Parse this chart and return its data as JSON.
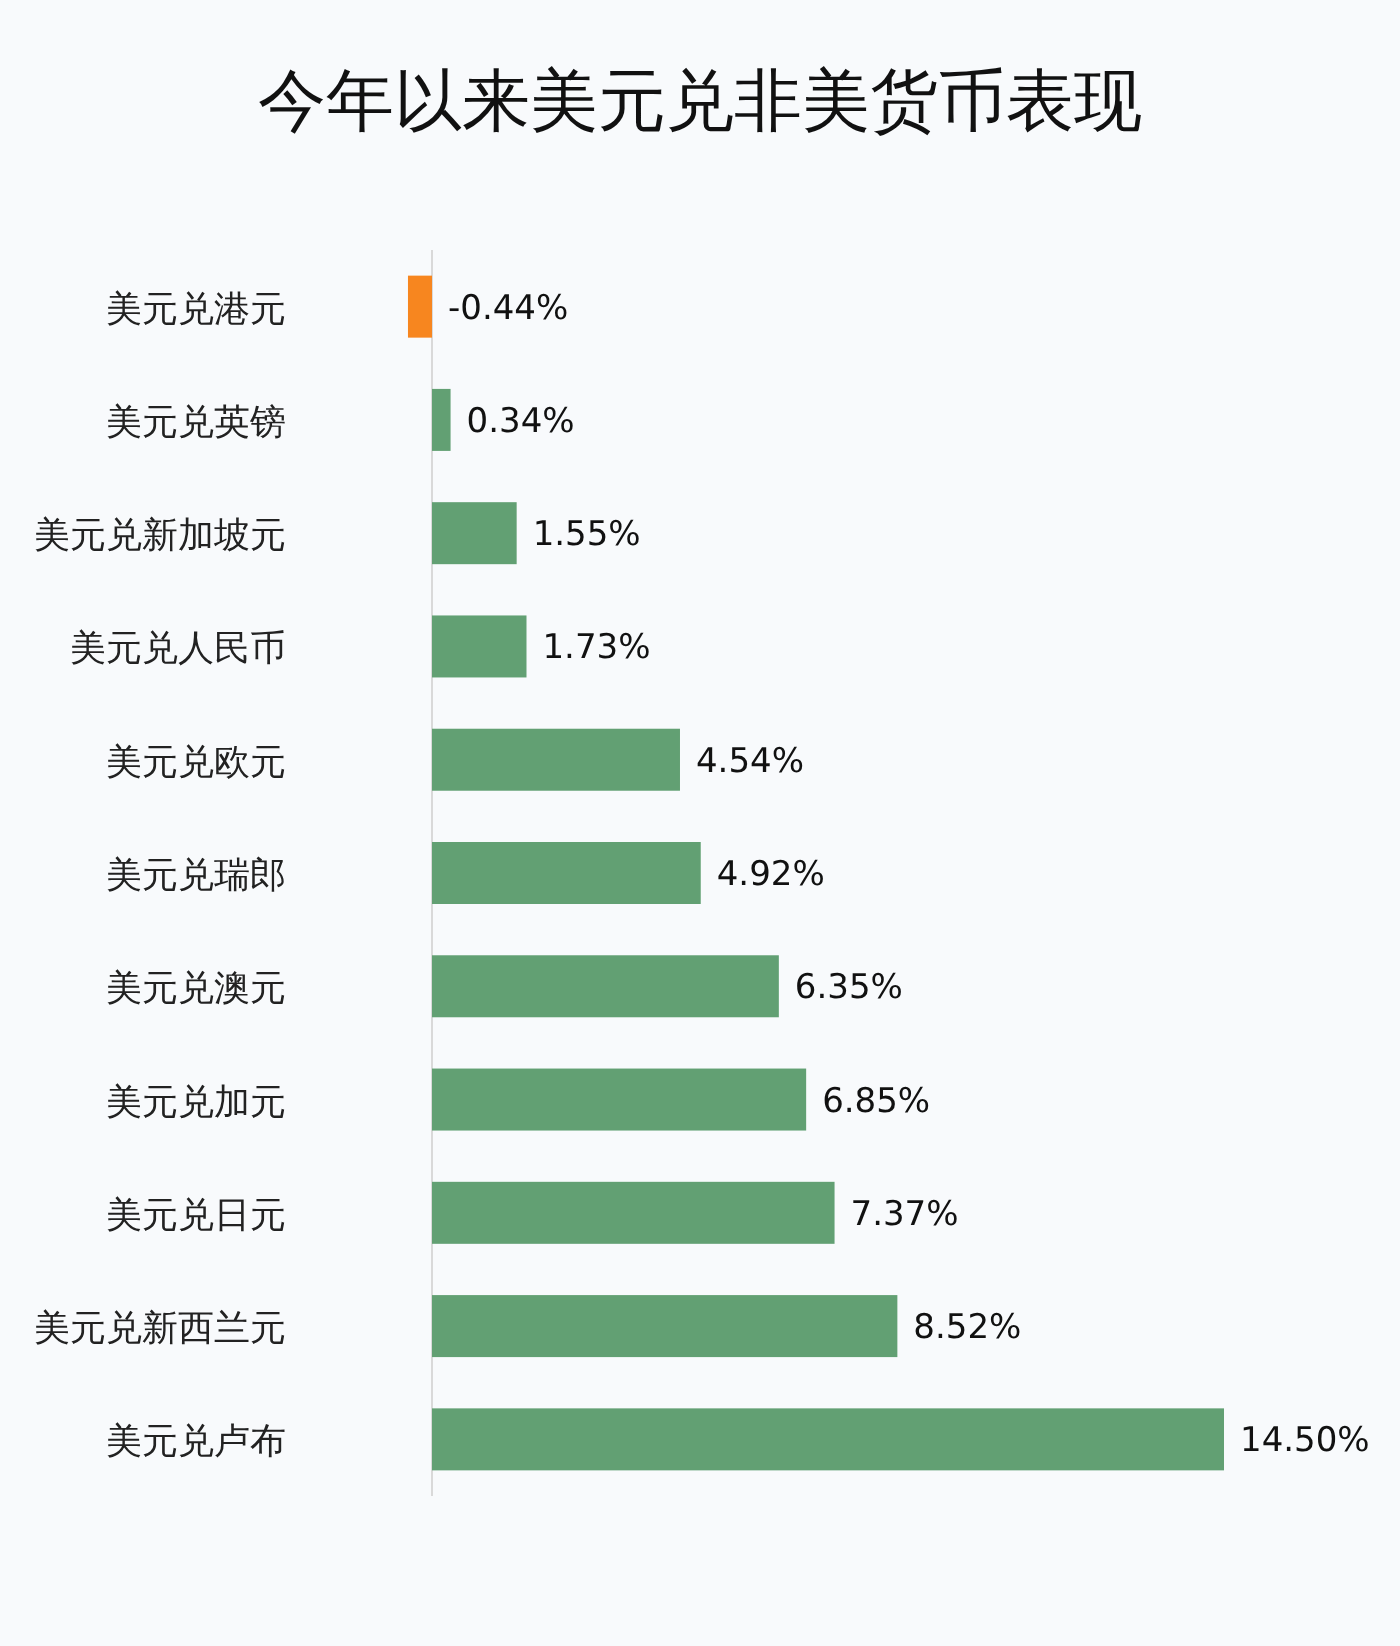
{
  "chart_data": {
    "type": "bar",
    "orientation": "horizontal",
    "title": "今年以来美元兑非美货币表现",
    "categories": [
      "美元兑港元",
      "美元兑英镑",
      "美元兑新加坡元",
      "美元兑人民币",
      "美元兑欧元",
      "美元兑瑞郎",
      "美元兑澳元",
      "美元兑加元",
      "美元兑日元",
      "美元兑新西兰元",
      "美元兑卢布"
    ],
    "values": [
      -0.44,
      0.34,
      1.55,
      1.73,
      4.54,
      4.92,
      6.35,
      6.85,
      7.37,
      8.52,
      14.5
    ],
    "value_labels": [
      "-0.44%",
      "0.34%",
      "1.55%",
      "1.73%",
      "4.54%",
      "4.92%",
      "6.35%",
      "6.85%",
      "7.37%",
      "8.52%",
      "14.50%"
    ],
    "colors": [
      "#f7861f",
      "#62a073",
      "#62a073",
      "#62a073",
      "#62a073",
      "#62a073",
      "#62a073",
      "#62a073",
      "#62a073",
      "#62a073",
      "#62a073"
    ]
  }
}
